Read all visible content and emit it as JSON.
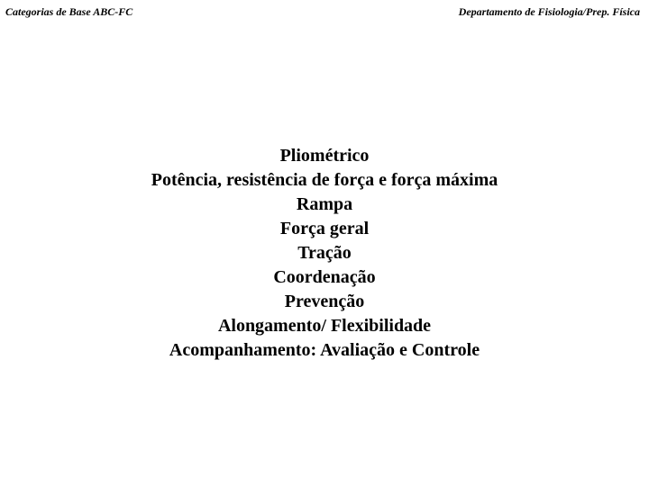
{
  "header": {
    "left": "Categorias de Base ABC-FC",
    "right": "Departamento de Fisiologia/Prep. Física"
  },
  "content": {
    "lines": [
      "Pliométrico",
      "Potência, resistência de força e força máxima",
      "Rampa",
      "Força geral",
      "Tração",
      "Coordenação",
      "Prevenção",
      "Alongamento/ Flexibilidade",
      "Acompanhamento: Avaliação e Controle"
    ]
  }
}
